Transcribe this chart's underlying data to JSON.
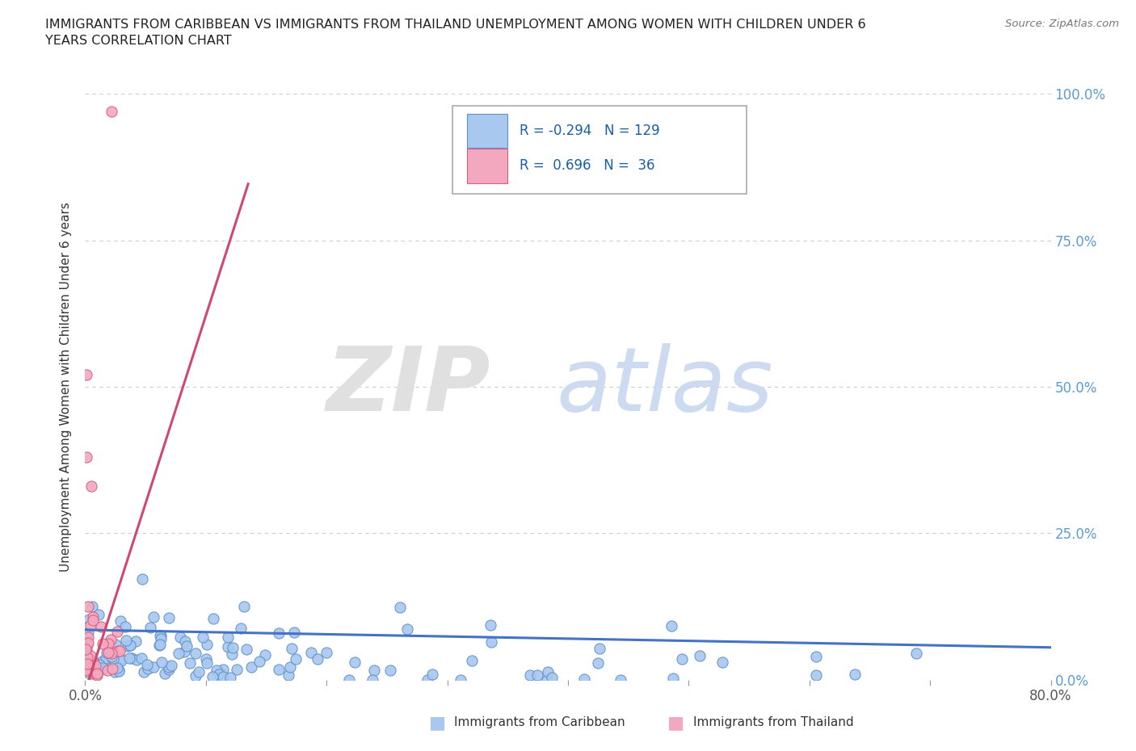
{
  "title": "IMMIGRANTS FROM CARIBBEAN VS IMMIGRANTS FROM THAILAND UNEMPLOYMENT AMONG WOMEN WITH CHILDREN UNDER 6\nYEARS CORRELATION CHART",
  "source": "Source: ZipAtlas.com",
  "ylabel": "Unemployment Among Women with Children Under 6 years",
  "xlim": [
    0,
    0.8
  ],
  "ylim": [
    0,
    1.0
  ],
  "xticks": [
    0.0,
    0.1,
    0.2,
    0.3,
    0.4,
    0.5,
    0.6,
    0.7,
    0.8
  ],
  "xtick_labels": [
    "0.0%",
    "",
    "",
    "",
    "",
    "",
    "",
    "",
    "80.0%"
  ],
  "ytick_labels": [
    "0.0%",
    "25.0%",
    "50.0%",
    "75.0%",
    "100.0%"
  ],
  "yticks": [
    0.0,
    0.25,
    0.5,
    0.75,
    1.0
  ],
  "caribbean_color": "#a8c8f0",
  "thailand_color": "#f4a8c0",
  "caribbean_edge": "#6090c8",
  "thailand_edge": "#d06080",
  "caribbean_line_color": "#4472c4",
  "thailand_line_color": "#d04870",
  "R_caribbean": -0.294,
  "N_caribbean": 129,
  "R_thailand": 0.696,
  "N_thailand": 36,
  "legend_label_caribbean": "Immigrants from Caribbean",
  "legend_label_thailand": "Immigrants from Thailand",
  "background_color": "#ffffff",
  "grid_color": "#cccccc",
  "title_color": "#222222",
  "right_axis_color": "#5b9bd5"
}
